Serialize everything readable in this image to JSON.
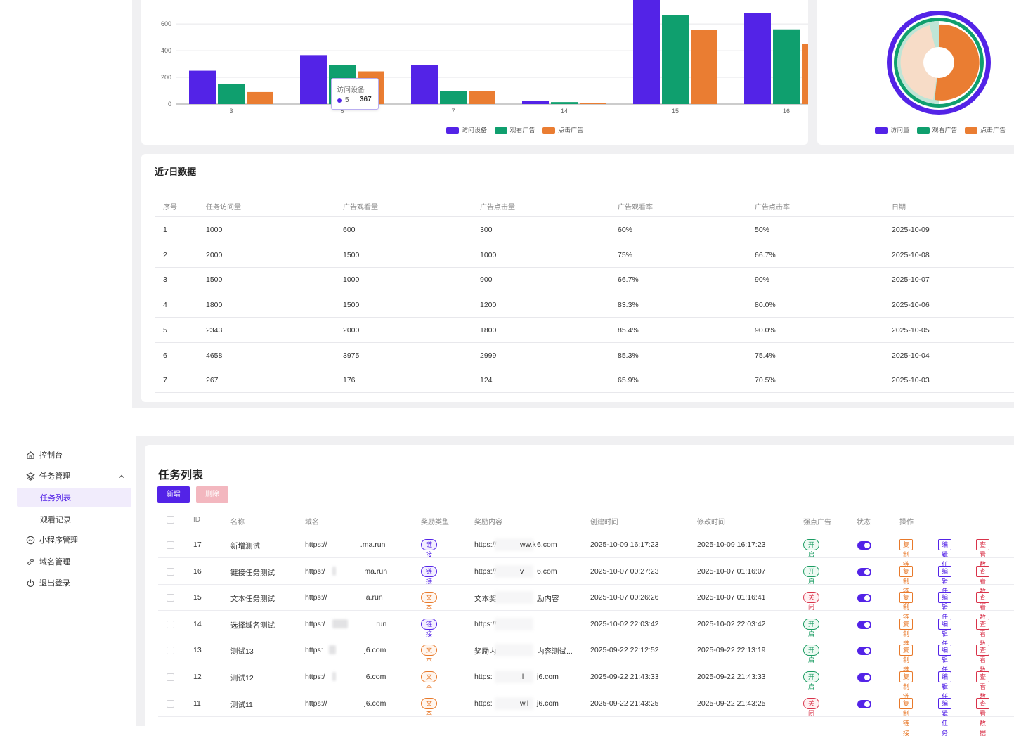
{
  "chart_data": [
    {
      "type": "bar",
      "categories": [
        "3",
        "5",
        "7",
        "14",
        "15",
        "16"
      ],
      "series": [
        {
          "name": "访问设备",
          "values": [
            250,
            367,
            290,
            25,
            820,
            680
          ]
        },
        {
          "name": "观看广告",
          "values": [
            150,
            290,
            100,
            15,
            665,
            560
          ]
        },
        {
          "name": "点击广告",
          "values": [
            90,
            245,
            100,
            10,
            555,
            450
          ]
        }
      ],
      "yticks": [
        "0",
        "200",
        "400",
        "600"
      ],
      "ylim": [
        0,
        780
      ],
      "legend_position": "bottom-center",
      "tooltip": {
        "title": "访问设备",
        "category": "5",
        "value": "367"
      },
      "colors": [
        "#5323e7",
        "#0f9f6e",
        "#ea7d32"
      ]
    },
    {
      "type": "pie",
      "series": [
        {
          "name": "访问量"
        },
        {
          "name": "观看广告"
        },
        {
          "name": "点击广告"
        }
      ],
      "legend_position": "bottom-center",
      "colors": [
        "#5323e7",
        "#0f9f6e",
        "#ea7d32"
      ]
    }
  ],
  "recent7": {
    "title": "近7日数据",
    "headers": [
      "序号",
      "任务访问量",
      "广告观看量",
      "广告点击量",
      "广告观看率",
      "广告点击率",
      "日期"
    ],
    "rows": [
      [
        "1",
        "1000",
        "600",
        "300",
        "60%",
        "50%",
        "2025-10-09"
      ],
      [
        "2",
        "2000",
        "1500",
        "1000",
        "75%",
        "66.7%",
        "2025-10-08"
      ],
      [
        "3",
        "1500",
        "1000",
        "900",
        "66.7%",
        "90%",
        "2025-10-07"
      ],
      [
        "4",
        "1800",
        "1500",
        "1200",
        "83.3%",
        "80.0%",
        "2025-10-06"
      ],
      [
        "5",
        "2343",
        "2000",
        "1800",
        "85.4%",
        "90.0%",
        "2025-10-05"
      ],
      [
        "6",
        "4658",
        "3975",
        "2999",
        "85.3%",
        "75.4%",
        "2025-10-04"
      ],
      [
        "7",
        "267",
        "176",
        "124",
        "65.9%",
        "70.5%",
        "2025-10-03"
      ]
    ]
  },
  "sidebar": {
    "items": [
      {
        "label": "控制台",
        "icon": "home-icon"
      },
      {
        "label": "任务管理",
        "icon": "layers-icon",
        "expanded": true
      },
      {
        "label": "任务列表",
        "active": true
      },
      {
        "label": "观看记录"
      },
      {
        "label": "小程序管理",
        "icon": "miniprogram-icon"
      },
      {
        "label": "域名管理",
        "icon": "link-icon"
      },
      {
        "label": "退出登录",
        "icon": "power-icon"
      }
    ]
  },
  "tasks": {
    "title": "任务列表",
    "add_label": "新增",
    "delete_label": "删除",
    "headers": [
      "ID",
      "名称",
      "域名",
      "奖励类型",
      "奖励内容",
      "创建时间",
      "修改时间",
      "强点广告",
      "状态",
      "操作"
    ],
    "rows": [
      {
        "id": "17",
        "name": "新增测试",
        "domain_pre": "https://",
        "domain_post": ".ma.run",
        "type": "链接",
        "content_pre": "https://",
        "content_mid": "ww.k",
        "content_post": "6.com",
        "created": "2025-10-09 16:17:23",
        "updated": "2025-10-09 16:17:23",
        "ad": "开启",
        "status": true
      },
      {
        "id": "16",
        "name": "链接任务测试",
        "domain_pre": "https:/",
        "domain_post": "ma.run",
        "type": "链接",
        "content_pre": "https://",
        "content_mid": "v",
        "content_post": "6.com",
        "created": "2025-10-07 00:27:23",
        "updated": "2025-10-07 01:16:07",
        "ad": "开启",
        "status": true
      },
      {
        "id": "15",
        "name": "文本任务测试",
        "domain_pre": "https://",
        "domain_post": "ia.run",
        "type": "文本",
        "content_pre": "文本奖",
        "content_mid": "",
        "content_post": "励内容",
        "created": "2025-10-07 00:26:26",
        "updated": "2025-10-07 01:16:41",
        "ad": "关闭",
        "status": true
      },
      {
        "id": "14",
        "name": "选择域名测试",
        "domain_pre": "https:/",
        "domain_post": "run",
        "type": "链接",
        "content_pre": "https://",
        "content_mid": "",
        "content_post": "",
        "created": "2025-10-02 22:03:42",
        "updated": "2025-10-02 22:03:42",
        "ad": "开启",
        "status": true
      },
      {
        "id": "13",
        "name": "测试13",
        "domain_pre": "https:",
        "domain_post": "j6.com",
        "type": "文本",
        "content_pre": "奖励内",
        "content_mid": "",
        "content_post": "内容测试...",
        "created": "2025-09-22 22:12:52",
        "updated": "2025-09-22 22:13:19",
        "ad": "开启",
        "status": true
      },
      {
        "id": "12",
        "name": "测试12",
        "domain_pre": "https:/",
        "domain_post": "j6.com",
        "type": "文本",
        "content_pre": "https:",
        "content_mid": ".l",
        "content_post": "j6.com",
        "created": "2025-09-22 21:43:33",
        "updated": "2025-09-22 21:43:33",
        "ad": "开启",
        "status": true
      },
      {
        "id": "11",
        "name": "测试11",
        "domain_pre": "https://",
        "domain_post": "j6.com",
        "type": "文本",
        "content_pre": "https:",
        "content_mid": "w.l",
        "content_post": "j6.com",
        "created": "2025-09-22 21:43:25",
        "updated": "2025-09-22 21:43:25",
        "ad": "关闭",
        "status": true
      }
    ],
    "ops": [
      "复制链接",
      "编辑任务",
      "查看数据"
    ]
  }
}
